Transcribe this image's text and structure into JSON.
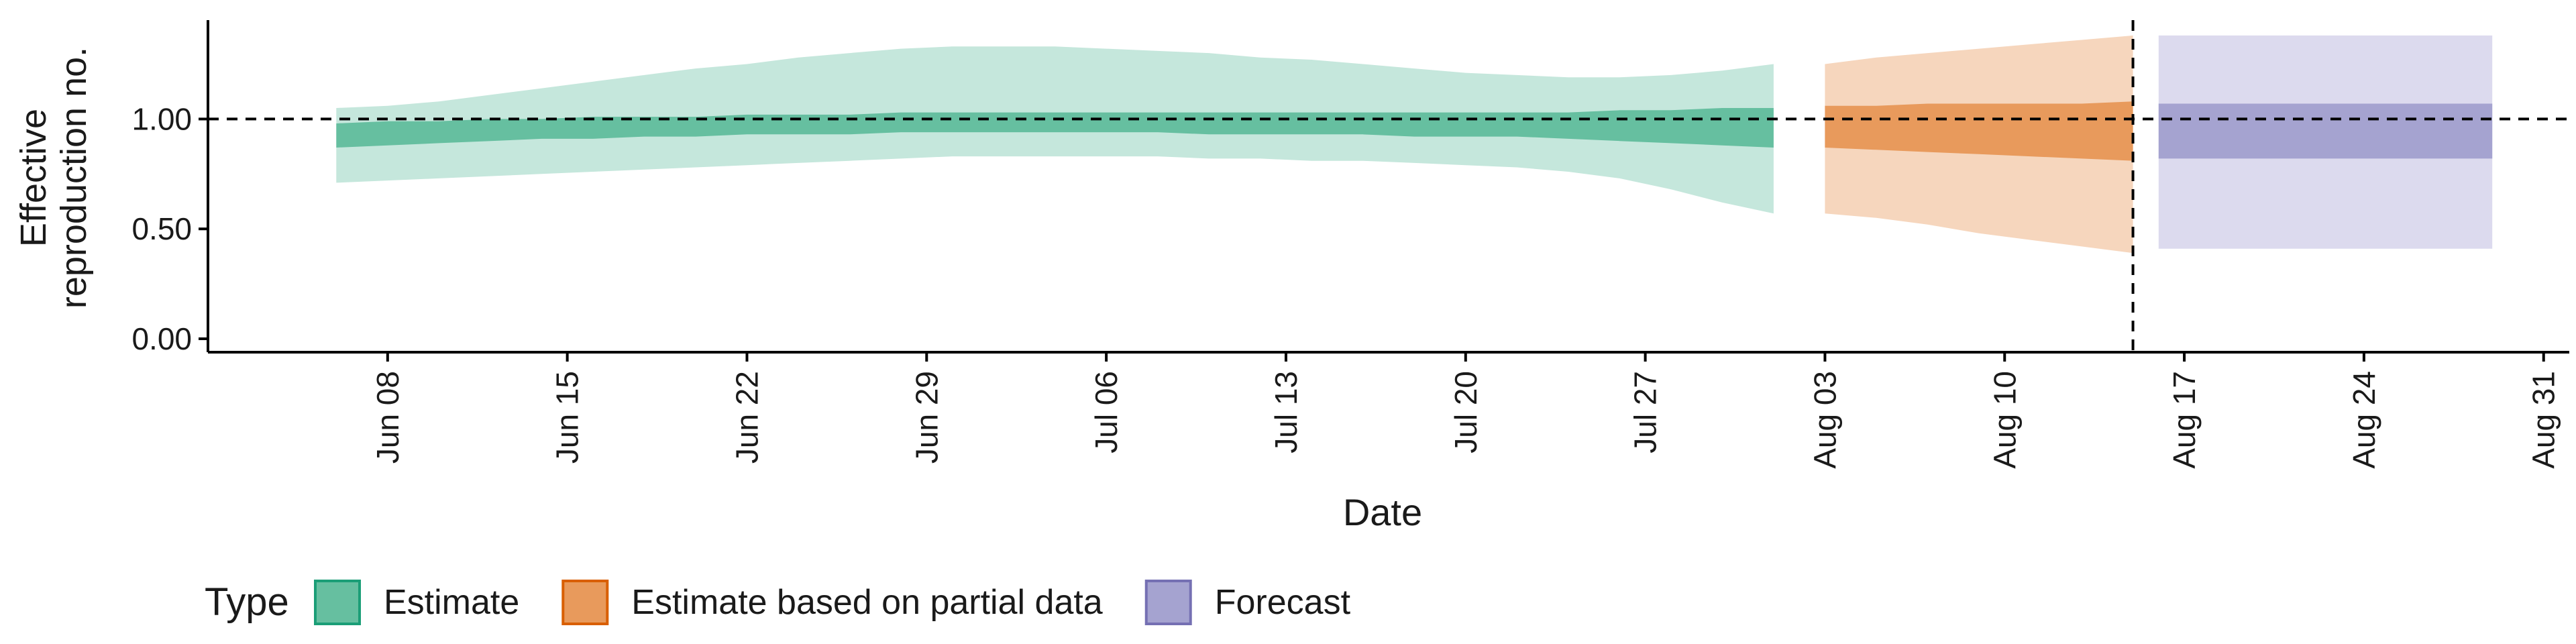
{
  "chart_data": {
    "type": "area",
    "xlabel": "Date",
    "ylabel_lines": [
      "Effective",
      "reproduction no."
    ],
    "xlim": [
      "2021-06-01",
      "2021-09-01"
    ],
    "ylim": [
      0,
      1.45
    ],
    "y_ticks": [
      0,
      0.5,
      1.0
    ],
    "y_tick_labels": [
      "0.00",
      "0.50",
      "1.00"
    ],
    "x_ticks": [
      "2021-06-08",
      "2021-06-15",
      "2021-06-22",
      "2021-06-29",
      "2021-07-06",
      "2021-07-13",
      "2021-07-20",
      "2021-07-27",
      "2021-08-03",
      "2021-08-10",
      "2021-08-17",
      "2021-08-24",
      "2021-08-31"
    ],
    "x_tick_labels": [
      "Jun 08",
      "Jun 15",
      "Jun 22",
      "Jun 29",
      "Jul 06",
      "Jul 13",
      "Jul 20",
      "Jul 27",
      "Aug 03",
      "Aug 10",
      "Aug 17",
      "Aug 24",
      "Aug 31"
    ],
    "reference_hline": 1.0,
    "reference_vline": "2021-08-15",
    "grid": false,
    "legend_position": "bottom",
    "legend": {
      "title": "Type",
      "items": [
        {
          "label": "Estimate",
          "fill": "#66bfa0",
          "stroke": "#1b9e77"
        },
        {
          "label": "Estimate based on partial data",
          "fill": "#e89a5c",
          "stroke": "#d95f02"
        },
        {
          "label": "Forecast",
          "fill": "#a5a3d0",
          "stroke": "#7570b3"
        }
      ]
    },
    "series": [
      {
        "name": "Estimate",
        "outer_color": "#c5e7dc",
        "inner_color": "#66bfa0",
        "x": [
          "2021-06-06",
          "2021-06-08",
          "2021-06-10",
          "2021-06-12",
          "2021-06-14",
          "2021-06-16",
          "2021-06-18",
          "2021-06-20",
          "2021-06-22",
          "2021-06-24",
          "2021-06-26",
          "2021-06-28",
          "2021-06-30",
          "2021-07-02",
          "2021-07-04",
          "2021-07-06",
          "2021-07-08",
          "2021-07-10",
          "2021-07-12",
          "2021-07-14",
          "2021-07-16",
          "2021-07-18",
          "2021-07-20",
          "2021-07-22",
          "2021-07-24",
          "2021-07-26",
          "2021-07-28",
          "2021-07-30",
          "2021-08-01"
        ],
        "outer_lower": [
          0.71,
          0.72,
          0.73,
          0.74,
          0.75,
          0.76,
          0.77,
          0.78,
          0.79,
          0.8,
          0.81,
          0.82,
          0.83,
          0.83,
          0.83,
          0.83,
          0.83,
          0.82,
          0.82,
          0.81,
          0.81,
          0.8,
          0.79,
          0.78,
          0.76,
          0.73,
          0.68,
          0.62,
          0.57
        ],
        "outer_upper": [
          1.05,
          1.06,
          1.08,
          1.11,
          1.14,
          1.17,
          1.2,
          1.23,
          1.25,
          1.28,
          1.3,
          1.32,
          1.33,
          1.33,
          1.33,
          1.32,
          1.31,
          1.3,
          1.28,
          1.27,
          1.25,
          1.23,
          1.21,
          1.2,
          1.19,
          1.19,
          1.2,
          1.22,
          1.25
        ],
        "inner_lower": [
          0.87,
          0.88,
          0.89,
          0.9,
          0.91,
          0.91,
          0.92,
          0.92,
          0.93,
          0.93,
          0.93,
          0.94,
          0.94,
          0.94,
          0.94,
          0.94,
          0.94,
          0.93,
          0.93,
          0.93,
          0.93,
          0.92,
          0.92,
          0.92,
          0.91,
          0.9,
          0.89,
          0.88,
          0.87
        ],
        "inner_upper": [
          0.98,
          0.99,
          0.99,
          1.0,
          1.0,
          1.01,
          1.01,
          1.01,
          1.02,
          1.02,
          1.02,
          1.03,
          1.03,
          1.03,
          1.03,
          1.03,
          1.03,
          1.03,
          1.03,
          1.03,
          1.03,
          1.03,
          1.03,
          1.03,
          1.03,
          1.04,
          1.04,
          1.05,
          1.05
        ]
      },
      {
        "name": "Estimate based on partial data",
        "outer_color": "#f6d6bd",
        "inner_color": "#e89a5c",
        "x": [
          "2021-08-03",
          "2021-08-05",
          "2021-08-07",
          "2021-08-09",
          "2021-08-11",
          "2021-08-13",
          "2021-08-15"
        ],
        "outer_lower": [
          0.57,
          0.55,
          0.52,
          0.48,
          0.45,
          0.42,
          0.39
        ],
        "outer_upper": [
          1.25,
          1.28,
          1.3,
          1.32,
          1.34,
          1.36,
          1.38
        ],
        "inner_lower": [
          0.87,
          0.86,
          0.85,
          0.84,
          0.83,
          0.82,
          0.81
        ],
        "inner_upper": [
          1.06,
          1.06,
          1.07,
          1.07,
          1.07,
          1.07,
          1.08
        ]
      },
      {
        "name": "Forecast",
        "outer_color": "#dcdaee",
        "inner_color": "#a5a3d0",
        "x": [
          "2021-08-16",
          "2021-08-29"
        ],
        "outer_lower": [
          0.41,
          0.41
        ],
        "outer_upper": [
          1.38,
          1.38
        ],
        "inner_lower": [
          0.82,
          0.82
        ],
        "inner_upper": [
          1.07,
          1.07
        ]
      }
    ]
  }
}
